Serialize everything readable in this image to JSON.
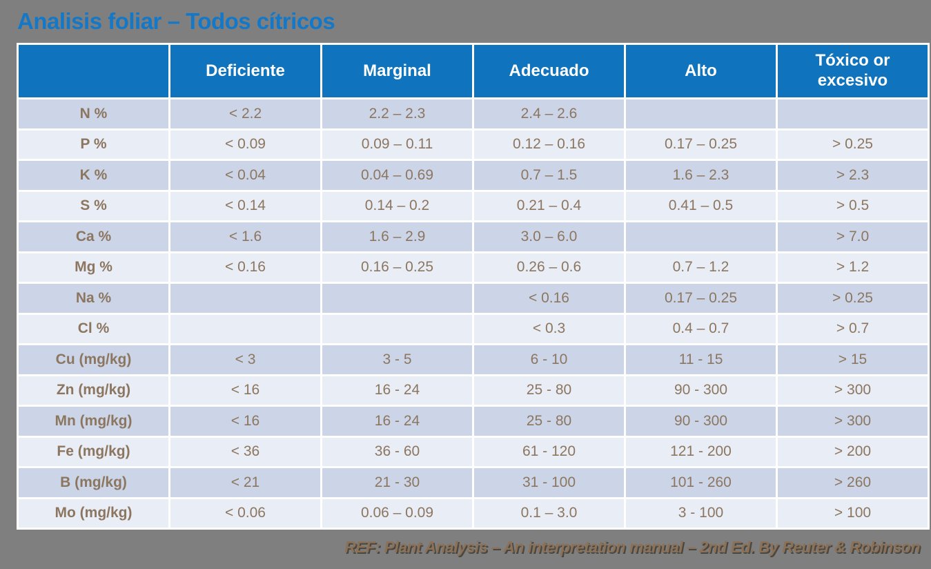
{
  "title": "Analisis foliar – Todos cítricos",
  "footer": {
    "reference": "REF: Plant Analysis – An interpretation manual – 2nd Ed. By Reuter & Robinson"
  },
  "colors": {
    "background_gray": "#7f7f7f",
    "title_blue": "#1478c8",
    "header_blue": "#0f74bd",
    "row_dark": "#cbd5e7",
    "row_light": "#e9edf5",
    "cell_text_brown": "#8c7660",
    "footer_brown": "#8a7157",
    "grid_white": "#ffffff"
  },
  "chart_data": {
    "type": "table",
    "title": "Analisis foliar – Todos cítricos",
    "columns": [
      "",
      "Deficiente",
      "Marginal",
      "Adecuado",
      "Alto",
      "Tóxico or excesivo"
    ],
    "rows": [
      {
        "label": "N %",
        "values": [
          "< 2.2",
          "2.2 – 2.3",
          "2.4 – 2.6",
          "",
          ""
        ]
      },
      {
        "label": "P %",
        "values": [
          "< 0.09",
          "0.09 – 0.11",
          "0.12 – 0.16",
          "0.17 – 0.25",
          "> 0.25"
        ]
      },
      {
        "label": "K %",
        "values": [
          "< 0.04",
          "0.04 – 0.69",
          "0.7 – 1.5",
          "1.6 – 2.3",
          "> 2.3"
        ]
      },
      {
        "label": "S %",
        "values": [
          "< 0.14",
          "0.14 – 0.2",
          "0.21 – 0.4",
          "0.41 – 0.5",
          "> 0.5"
        ]
      },
      {
        "label": "Ca %",
        "values": [
          "< 1.6",
          "1.6 – 2.9",
          "3.0 – 6.0",
          "",
          "> 7.0"
        ]
      },
      {
        "label": "Mg %",
        "values": [
          "< 0.16",
          "0.16 – 0.25",
          "0.26 – 0.6",
          "0.7 – 1.2",
          "> 1.2"
        ]
      },
      {
        "label": "Na %",
        "values": [
          "",
          "",
          "< 0.16",
          "0.17 – 0.25",
          "> 0.25"
        ]
      },
      {
        "label": "Cl %",
        "values": [
          "",
          "",
          "< 0.3",
          "0.4 – 0.7",
          "> 0.7"
        ]
      },
      {
        "label": "Cu (mg/kg)",
        "values": [
          "< 3",
          "3 - 5",
          "6 - 10",
          "11 - 15",
          "> 15"
        ]
      },
      {
        "label": "Zn (mg/kg)",
        "values": [
          "< 16",
          "16 - 24",
          "25 - 80",
          "90 - 300",
          "> 300"
        ]
      },
      {
        "label": "Mn (mg/kg)",
        "values": [
          "< 16",
          "16 - 24",
          "25 - 80",
          "90 - 300",
          "> 300"
        ]
      },
      {
        "label": "Fe (mg/kg)",
        "values": [
          "< 36",
          "36 - 60",
          "61 - 120",
          "121 - 200",
          "> 200"
        ]
      },
      {
        "label": "B (mg/kg)",
        "values": [
          "< 21",
          "21 - 30",
          "31 - 100",
          "101 - 260",
          "> 260"
        ]
      },
      {
        "label": "Mo (mg/kg)",
        "values": [
          "< 0.06",
          "0.06 – 0.09",
          "0.1 – 3.0",
          "3 - 100",
          "> 100"
        ]
      }
    ]
  }
}
